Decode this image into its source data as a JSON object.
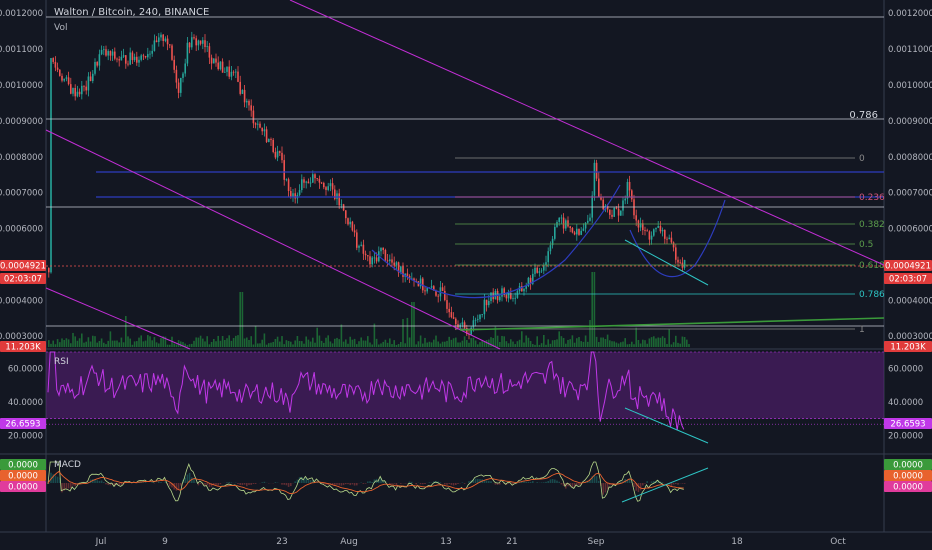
{
  "header": {
    "title": "Walton / Bitcoin, 240, BINANCE",
    "vol_label": "Vol"
  },
  "price_panel": {
    "y_ticks": [
      "0.0012000",
      "0.0011000",
      "0.0010000",
      "0.0009000",
      "0.0008000",
      "0.0007000",
      "0.0006000",
      "0.0005000",
      "0.0004000",
      "0.0003000"
    ],
    "price_badge": "0.0004921",
    "timer_badge": "02:03:07",
    "vol_badge": "11.203K",
    "fib_labels": [
      "0.786",
      "0",
      "0.236",
      "0.382",
      "0.5",
      "0.618",
      "0.786",
      "1"
    ]
  },
  "rsi_panel": {
    "label": "RSI",
    "y_ticks": [
      "60.0000",
      "40.0000",
      "20.0000"
    ],
    "value_badge": "26.6593"
  },
  "macd_panel": {
    "label": "MACD",
    "values": [
      "0.0000",
      "0.0000",
      "0.0000"
    ]
  },
  "x_axis": {
    "labels": [
      "Jul",
      "9",
      "23",
      "Aug",
      "13",
      "21",
      "Sep",
      "18",
      "Oct"
    ]
  },
  "colors": {
    "background": "#131722",
    "bull": "#26a69a",
    "bear": "#ef5350",
    "rsi_line": "#c038e8",
    "rsi_band": "#5b1f7a",
    "channel": "#c22ed6",
    "fib_line": "#8a8a8a",
    "resistance": "#2d3cbf",
    "macd_line": "#b8d88b",
    "signal_line": "#e8622e",
    "trend_line": "#2ec4c4",
    "volume_green": "#1f7a3a"
  },
  "chart_data": {
    "type": "line",
    "series": [
      {
        "name": "Walton / Bitcoin",
        "x": [
          "Jul",
          "9",
          "23",
          "Aug",
          "13",
          "21",
          "Sep"
        ],
        "values": [
          0.00104,
          0.00112,
          0.00068,
          0.00046,
          0.00031,
          0.00043,
          0.00049
        ]
      }
    ],
    "ylim": [
      0.00027,
      0.00122
    ],
    "rsi_ylim": [
      10,
      70
    ],
    "rsi_value": 26.6593,
    "last_price": 0.0004921
  }
}
